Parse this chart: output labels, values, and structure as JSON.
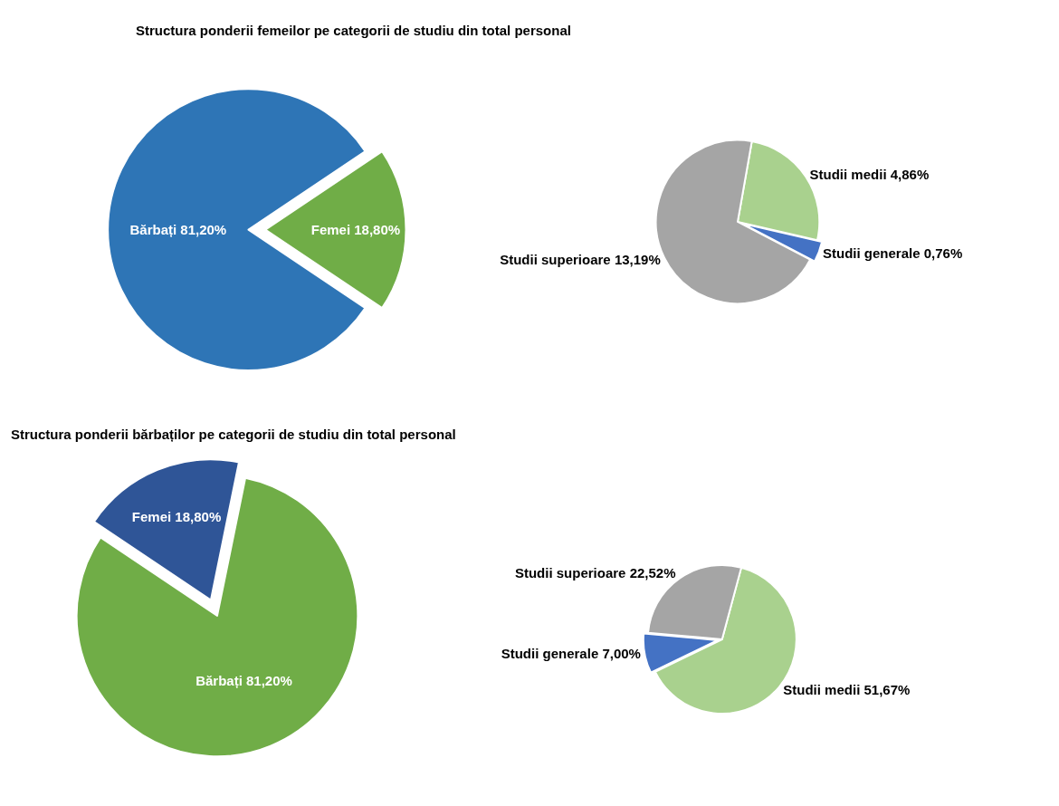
{
  "chart_data": [
    {
      "type": "pie",
      "title": "Structura ponderii femeilor pe categorii de studiu din total personal",
      "categories": [
        "Bărbați",
        "Femei"
      ],
      "values": [
        81.2,
        18.8
      ],
      "colors": [
        "#2e75b6",
        "#70ad47"
      ],
      "value_labels": [
        "81,20%",
        "18,80%"
      ]
    },
    {
      "type": "pie",
      "categories": [
        "Studii medii",
        "Studii generale",
        "Studii superioare"
      ],
      "values": [
        4.86,
        0.76,
        13.19
      ],
      "colors": [
        "#a9d18e",
        "#4472c4",
        "#a5a5a5"
      ],
      "value_labels": [
        "4,86%",
        "0,76%",
        "13,19%"
      ]
    },
    {
      "type": "pie",
      "title": "Structura ponderii bărbaților pe categorii de studiu din total personal",
      "categories": [
        "Femei",
        "Bărbați"
      ],
      "values": [
        18.8,
        81.2
      ],
      "colors": [
        "#2f5597",
        "#70ad47"
      ],
      "value_labels": [
        "18,80%",
        "81,20%"
      ]
    },
    {
      "type": "pie",
      "categories": [
        "Studii medii",
        "Studii generale",
        "Studii superioare"
      ],
      "values": [
        51.67,
        7.0,
        22.52
      ],
      "colors": [
        "#a9d18e",
        "#4472c4",
        "#a5a5a5"
      ],
      "value_labels": [
        "51,67%",
        "7,00%",
        "22,52%"
      ]
    }
  ]
}
